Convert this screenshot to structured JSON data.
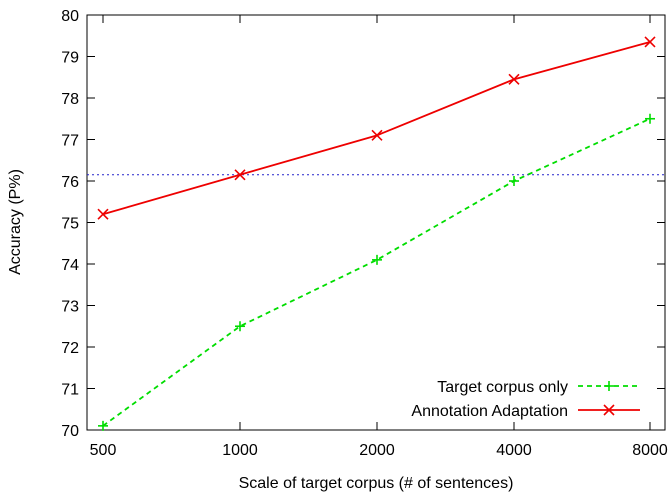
{
  "chart_data": {
    "type": "line",
    "title": "",
    "xlabel": "Scale of target corpus (# of sentences)",
    "ylabel": "Accuracy (P%)",
    "categories": [
      "500",
      "1000",
      "2000",
      "4000",
      "8000"
    ],
    "ylim": [
      70,
      80
    ],
    "yticks": [
      70,
      71,
      72,
      73,
      74,
      75,
      76,
      77,
      78,
      79,
      80
    ],
    "grid": false,
    "legend_position": "bottom-right",
    "series": [
      {
        "name": "Target corpus only",
        "values": [
          70.1,
          72.5,
          74.1,
          76.0,
          77.5
        ],
        "color": "#00dd00",
        "line_style": "dashed",
        "marker": "plus"
      },
      {
        "name": "Annotation Adaptation",
        "values": [
          75.2,
          76.15,
          77.1,
          78.45,
          79.35
        ],
        "color": "#ee0000",
        "line_style": "solid",
        "marker": "cross"
      }
    ],
    "reference_line": {
      "value": 76.15,
      "color": "#2222cc",
      "line_style": "dotted"
    }
  }
}
